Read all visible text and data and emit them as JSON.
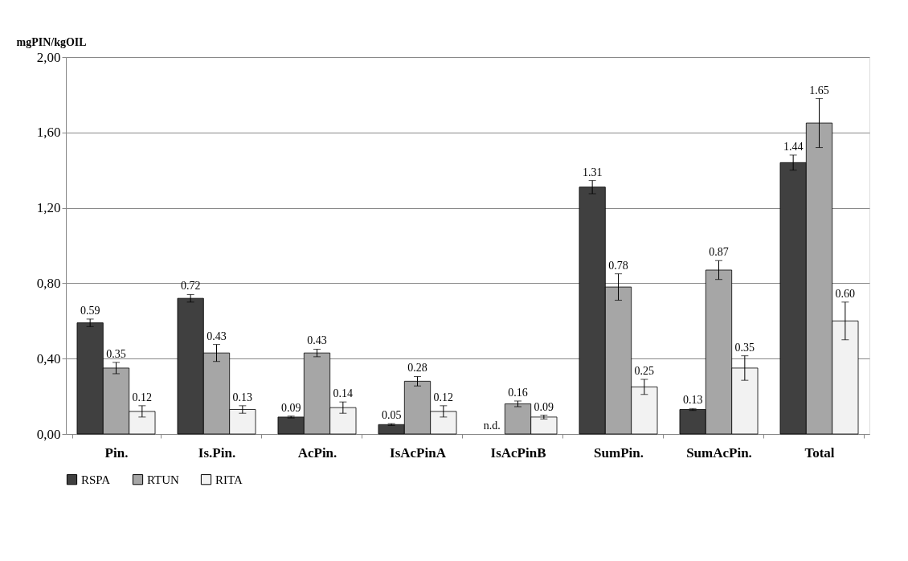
{
  "chart_data": {
    "type": "bar",
    "ylabel": "mgPIN/kgOIL",
    "categories": [
      "Pin.",
      "Is.Pin.",
      "AcPin.",
      "IsAcPinA",
      "IsAcPinB",
      "SumPin.",
      "SumAcPin.",
      "Total"
    ],
    "series": [
      {
        "name": "RSPA",
        "color": "#404040",
        "values": [
          0.59,
          0.72,
          0.09,
          0.05,
          null,
          1.31,
          0.13,
          1.44
        ],
        "errors": [
          0.02,
          0.02,
          0.005,
          0.005,
          null,
          0.035,
          0.005,
          0.04
        ],
        "value_labels": [
          "0.59",
          "0.72",
          "0.09",
          "0.05",
          "n.d.",
          "1.31",
          "0.13",
          "1.44"
        ]
      },
      {
        "name": "RTUN",
        "color": "#a6a6a6",
        "values": [
          0.35,
          0.43,
          0.43,
          0.28,
          0.16,
          0.78,
          0.87,
          1.65
        ],
        "errors": [
          0.03,
          0.045,
          0.02,
          0.025,
          0.015,
          0.07,
          0.05,
          0.13
        ],
        "value_labels": [
          "0.35",
          "0.43",
          "0.43",
          "0.28",
          "0.16",
          "0.78",
          "0.87",
          "1.65"
        ]
      },
      {
        "name": "RITA",
        "color": "#f2f2f2",
        "values": [
          0.12,
          0.13,
          0.14,
          0.12,
          0.09,
          0.25,
          0.35,
          0.6
        ],
        "errors": [
          0.03,
          0.02,
          0.03,
          0.03,
          0.01,
          0.04,
          0.065,
          0.1
        ],
        "value_labels": [
          "0.12",
          "0.13",
          "0.14",
          "0.12",
          "0.09",
          "0.25",
          "0.35",
          "0.60"
        ]
      }
    ],
    "ylim": [
      0,
      2
    ],
    "yticks": [
      {
        "value": 0,
        "label": "0,00"
      },
      {
        "value": 0.4,
        "label": "0,40"
      },
      {
        "value": 0.8,
        "label": "0,80"
      },
      {
        "value": 1.2,
        "label": "1,20"
      },
      {
        "value": 1.6,
        "label": "1,60"
      },
      {
        "value": 2,
        "label": "2,00"
      }
    ],
    "grid": "y",
    "legend": "bottom"
  }
}
